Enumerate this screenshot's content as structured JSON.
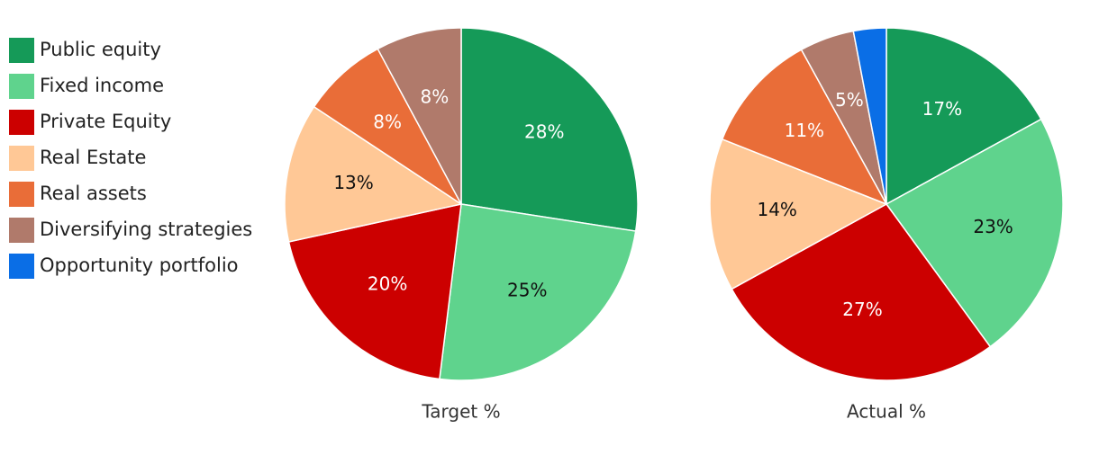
{
  "chart_data": [
    {
      "type": "pie",
      "title": "Target %",
      "categories": [
        "Public equity",
        "Fixed income",
        "Private Equity",
        "Real Estate",
        "Real assets",
        "Diversifying strategies"
      ],
      "values": [
        28,
        25,
        20,
        13,
        8,
        8
      ],
      "value_labels": [
        "28%",
        "25%",
        "20%",
        "13%",
        "8%",
        "8%"
      ],
      "colors": [
        "#159a58",
        "#5fd38d",
        "#cc0000",
        "#ffc896",
        "#e96d38",
        "#b07a6b"
      ]
    },
    {
      "type": "pie",
      "title": "Actual %",
      "categories": [
        "Public equity",
        "Fixed income",
        "Private Equity",
        "Real Estate",
        "Real assets",
        "Diversifying strategies",
        "Opportunity portfolio"
      ],
      "values": [
        17,
        23,
        27,
        14,
        11,
        5,
        3
      ],
      "value_labels": [
        "17%",
        "23%",
        "27%",
        "14%",
        "11%",
        "5%",
        null
      ],
      "colors": [
        "#159a58",
        "#5fd38d",
        "#cc0000",
        "#ffc896",
        "#e96d38",
        "#b07a6b",
        "#0a6ee6"
      ]
    }
  ]
}
